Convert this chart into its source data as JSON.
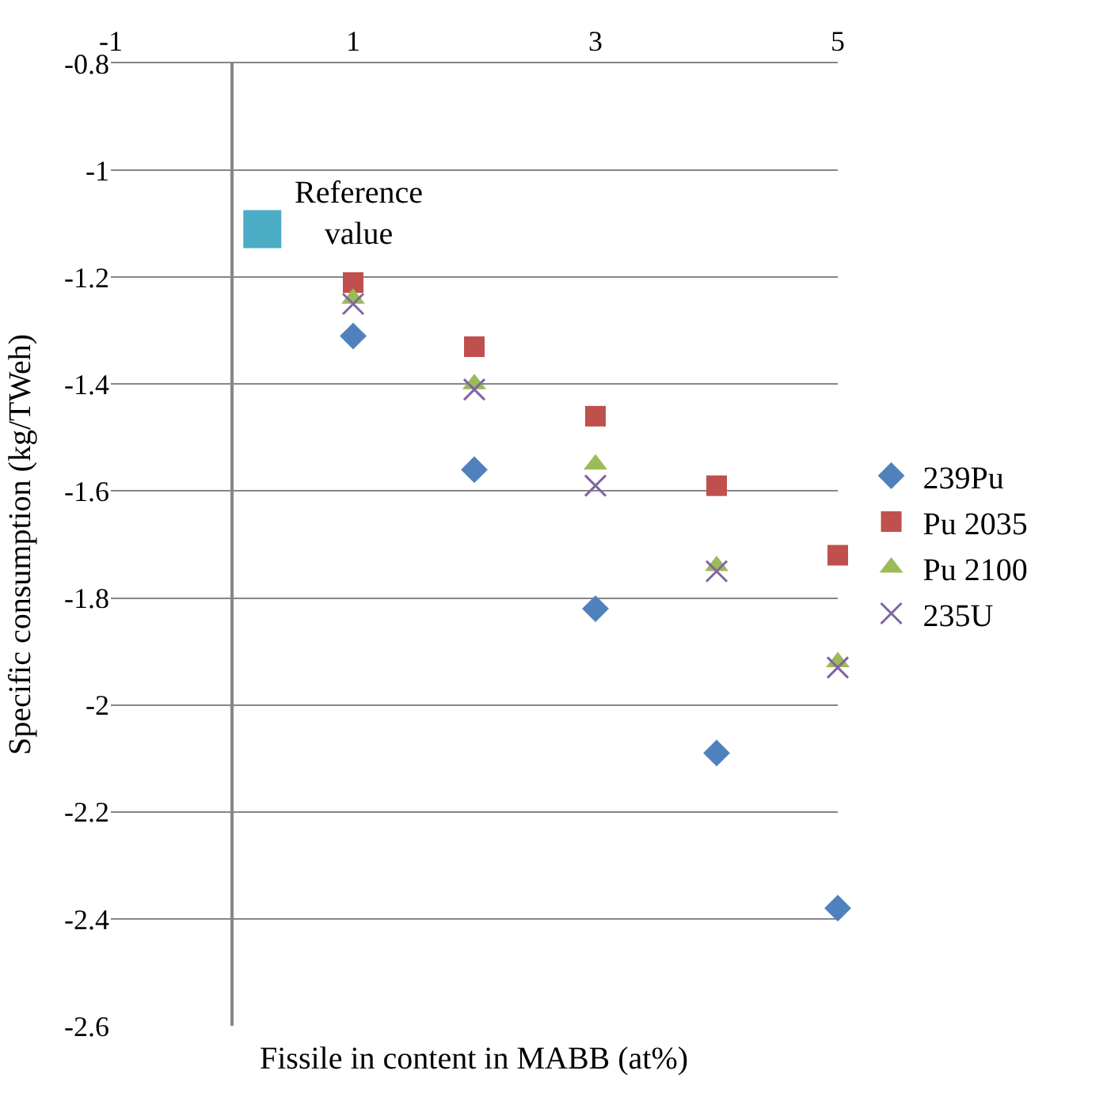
{
  "chart_data": {
    "type": "scatter",
    "xlabel": "Fissile in content in MABB (at%)",
    "ylabel": "Specific consumption (kg/TWeh)",
    "x": [
      1,
      2,
      3,
      4,
      5
    ],
    "series": [
      {
        "name": "239Pu",
        "color": "#4f81bd",
        "marker": "diamond",
        "values": [
          -1.31,
          -1.56,
          -1.82,
          -2.09,
          -2.38
        ]
      },
      {
        "name": "Pu 2035",
        "color": "#c0504d",
        "marker": "square",
        "values": [
          -1.21,
          -1.33,
          -1.46,
          -1.59,
          -1.72
        ]
      },
      {
        "name": "Pu 2100",
        "color": "#9bbb59",
        "marker": "triangle",
        "values": [
          -1.24,
          -1.4,
          -1.55,
          -1.74,
          -1.92
        ]
      },
      {
        "name": "235U",
        "color": "#8064a2",
        "marker": "cross",
        "values": [
          -1.25,
          -1.41,
          -1.59,
          -1.75,
          -1.93
        ]
      },
      {
        "name": "Reference value",
        "color": "#4bacc6",
        "marker": "square",
        "x": [
          0.25
        ],
        "values": [
          -1.11
        ]
      }
    ],
    "xlim": [
      -1,
      5
    ],
    "xticks": [
      -1,
      1,
      3,
      5
    ],
    "ylim": [
      -2.6,
      -0.8
    ],
    "yticks": [
      -2.6,
      -2.4,
      -2.2,
      -2,
      -1.8,
      -1.6,
      -1.4,
      -1.2,
      -1,
      -0.8
    ],
    "grid": "y",
    "legend": "right"
  }
}
